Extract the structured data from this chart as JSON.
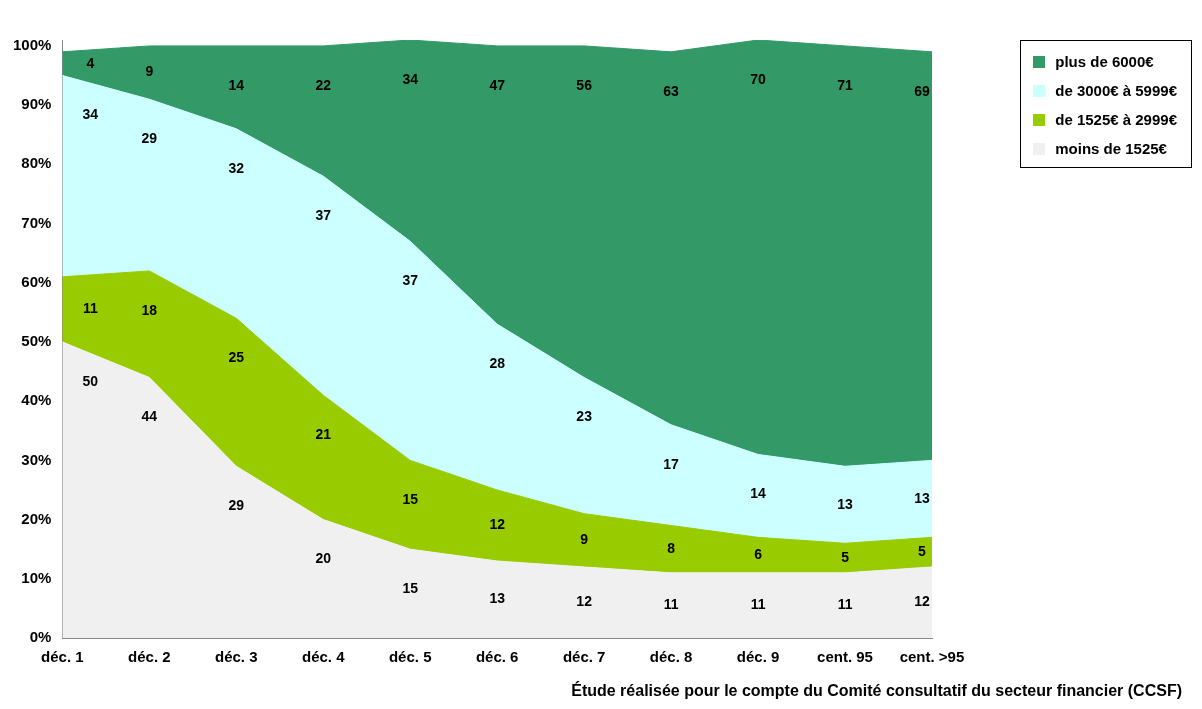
{
  "chart_data": {
    "type": "area",
    "stacked": true,
    "categories": [
      "déc. 1",
      "déc. 2",
      "déc. 3",
      "déc. 4",
      "déc. 5",
      "déc. 6",
      "déc. 7",
      "déc. 8",
      "déc. 9",
      "cent. 95",
      "cent. >95"
    ],
    "series": [
      {
        "name": "moins de 1525€",
        "color": "#f0f0f0",
        "values": [
          50,
          44,
          29,
          20,
          15,
          13,
          12,
          11,
          11,
          11,
          12
        ]
      },
      {
        "name": "de 1525€ à 2999€",
        "color": "#99cc00",
        "values": [
          11,
          18,
          25,
          21,
          15,
          12,
          9,
          8,
          6,
          5,
          5
        ]
      },
      {
        "name": "de 3000€ à 5999€",
        "color": "#ccffff",
        "values": [
          34,
          29,
          32,
          37,
          37,
          28,
          23,
          17,
          14,
          13,
          13
        ]
      },
      {
        "name": "plus de 6000€",
        "color": "#339966",
        "values": [
          4,
          9,
          14,
          22,
          34,
          47,
          56,
          63,
          70,
          71,
          69
        ]
      }
    ],
    "ylim": [
      0,
      101
    ],
    "yticks": [
      {
        "value": 0,
        "label": "0%"
      },
      {
        "value": 10,
        "label": "10%"
      },
      {
        "value": 20,
        "label": "20%"
      },
      {
        "value": 30,
        "label": "30%"
      },
      {
        "value": 40,
        "label": "40%"
      },
      {
        "value": 50,
        "label": "50%"
      },
      {
        "value": 60,
        "label": "60%"
      },
      {
        "value": 70,
        "label": "70%"
      },
      {
        "value": 80,
        "label": "80%"
      },
      {
        "value": 90,
        "label": "90%"
      },
      {
        "value": 100,
        "label": "100%"
      }
    ],
    "grid": false,
    "legend": "right",
    "data_labels": true,
    "annotations": [
      "Étude réalisée pour le compte du Comité consultatif du secteur financier (CCSF)"
    ]
  }
}
